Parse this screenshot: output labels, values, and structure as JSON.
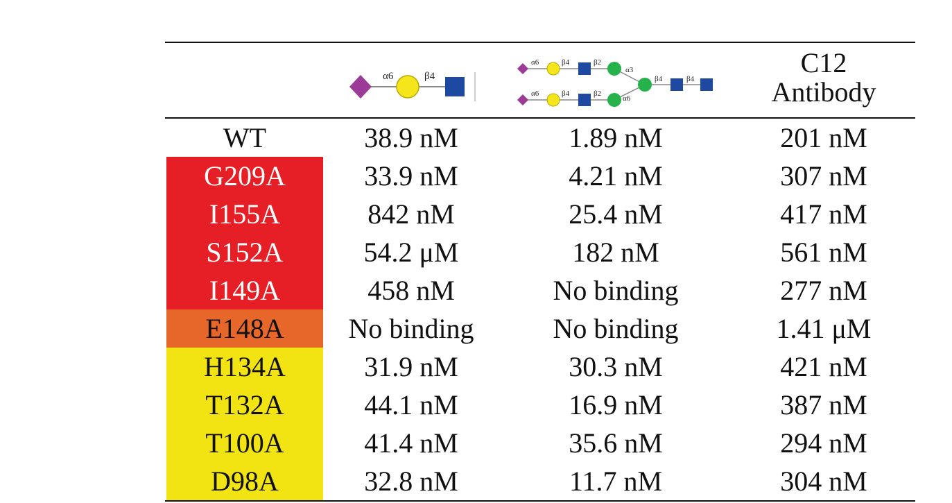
{
  "colors": {
    "red": "#e61e25",
    "orange": "#e7662a",
    "yellow": "#f2e413",
    "neuac": "#9b3a97",
    "gal": "#f5e51b",
    "glcnac": "#1d4aa0",
    "man": "#25b24a"
  },
  "header": {
    "col1_glycan": {
      "icon": "sialyl-lacnac-glycan",
      "linkages": [
        "α6",
        "β4"
      ]
    },
    "col2_glycan": {
      "icon": "biantennary-n-glycan",
      "linkages": [
        "α6",
        "β4",
        "β2",
        "α3",
        "α6",
        "β4",
        "β2",
        "α6",
        "β4",
        "β4"
      ]
    },
    "col3_line1": "C12",
    "col3_line2": "Antibody"
  },
  "rows": [
    {
      "mutant": "WT",
      "v1": "38.9 nM",
      "v2": "1.89 nM",
      "v3": "201 nM",
      "highlight": "none"
    },
    {
      "mutant": "G209A",
      "v1": "33.9 nM",
      "v2": "4.21 nM",
      "v3": "307 nM",
      "highlight": "red"
    },
    {
      "mutant": "I155A",
      "v1": "842 nM",
      "v2": "25.4 nM",
      "v3": "417 nM",
      "highlight": "red"
    },
    {
      "mutant": "S152A",
      "v1": "54.2 μM",
      "v2": "182 nM",
      "v3": "561 nM",
      "highlight": "red"
    },
    {
      "mutant": "I149A",
      "v1": "458 nM",
      "v2": "No binding",
      "v3": "277 nM",
      "highlight": "red"
    },
    {
      "mutant": "E148A",
      "v1": "No binding",
      "v2": "No binding",
      "v3": "1.41 μM",
      "highlight": "orange"
    },
    {
      "mutant": "H134A",
      "v1": "31.9 nM",
      "v2": "30.3 nM",
      "v3": "421 nM",
      "highlight": "yellow"
    },
    {
      "mutant": "T132A",
      "v1": "44.1 nM",
      "v2": "16.9 nM",
      "v3": "387 nM",
      "highlight": "yellow"
    },
    {
      "mutant": "T100A",
      "v1": "41.4 nM",
      "v2": "35.6 nM",
      "v3": "294 nM",
      "highlight": "yellow"
    },
    {
      "mutant": "D98A",
      "v1": "32.8 nM",
      "v2": "11.7 nM",
      "v3": "304 nM",
      "highlight": "yellow"
    }
  ]
}
